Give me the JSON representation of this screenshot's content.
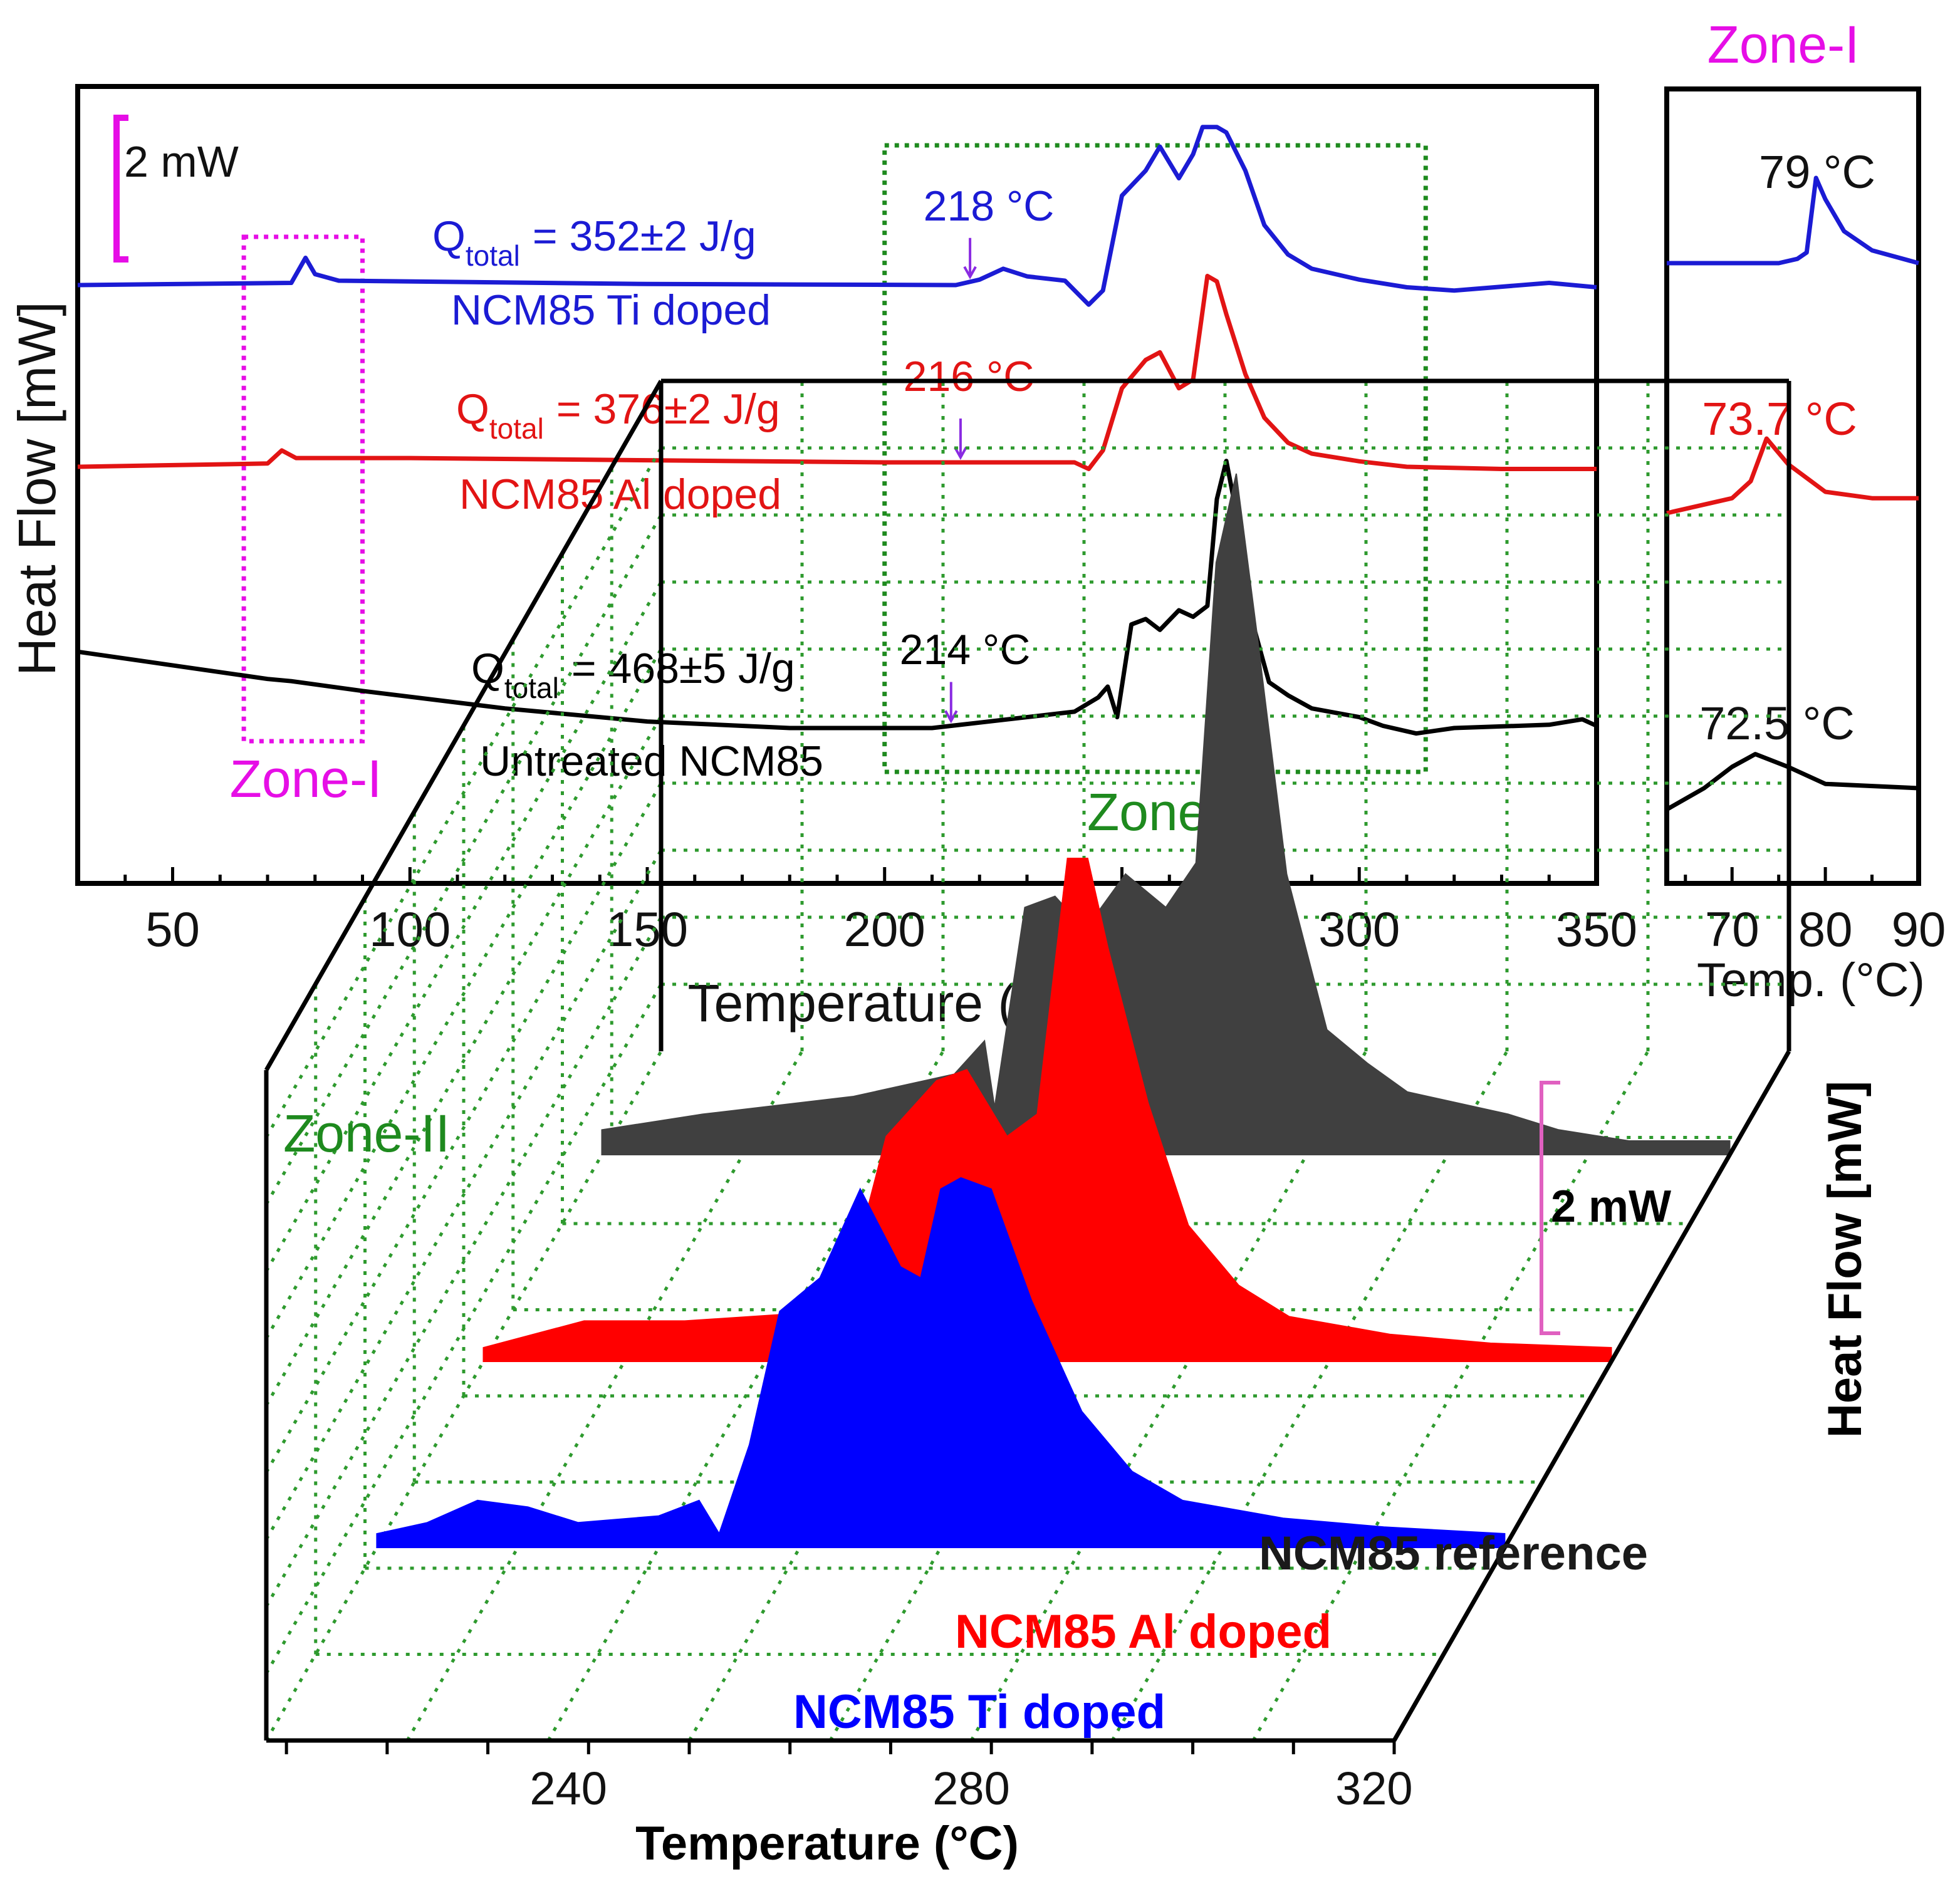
{
  "chart_data": [
    {
      "id": "main",
      "type": "line",
      "xlabel": "Temperature (°C)",
      "ylabel": "Heat Flow [mW]",
      "xlim": [
        30,
        350
      ],
      "xticks": [
        50,
        100,
        150,
        200,
        250,
        300,
        350
      ],
      "scale_bar": "2 mW",
      "zone_labels": {
        "zone1": "Zone-I",
        "zone2": "Zone-II"
      },
      "zone1_range": [
        65,
        90
      ],
      "zone2_range": [
        200,
        314
      ],
      "colors": {
        "ti": "#1b1bd4",
        "al": "#e21414",
        "ref": "#000000",
        "zone1": "#e60ee6",
        "zone2": "#1e8a1e",
        "arrow": "#8a2be2"
      },
      "series": [
        {
          "key": "ti",
          "name": "NCM85 Ti doped",
          "q_label": "Q",
          "q_sub": "total",
          "q_value": "=  352±2 J/g",
          "onset_label": "218 °C",
          "onset_x": 218,
          "points": [
            [
              30,
              0.0
            ],
            [
              75,
              0.02
            ],
            [
              78,
              0.25
            ],
            [
              80,
              0.1
            ],
            [
              85,
              0.04
            ],
            [
              150,
              0.01
            ],
            [
              215,
              0.0
            ],
            [
              220,
              0.05
            ],
            [
              225,
              0.15
            ],
            [
              230,
              0.08
            ],
            [
              238,
              0.04
            ],
            [
              243,
              -0.18
            ],
            [
              246,
              -0.05
            ],
            [
              250,
              0.82
            ],
            [
              255,
              1.05
            ],
            [
              258,
              1.27
            ],
            [
              262,
              0.98
            ],
            [
              265,
              1.2
            ],
            [
              267,
              1.45
            ],
            [
              270,
              1.45
            ],
            [
              272,
              1.4
            ],
            [
              276,
              1.05
            ],
            [
              280,
              0.55
            ],
            [
              285,
              0.28
            ],
            [
              290,
              0.15
            ],
            [
              300,
              0.05
            ],
            [
              310,
              -0.02
            ],
            [
              320,
              -0.05
            ],
            [
              340,
              0.02
            ],
            [
              350,
              -0.02
            ]
          ]
        },
        {
          "key": "al",
          "name": "NCM85 Al doped",
          "q_label": "Q",
          "q_sub": "total",
          "q_value": "=  376±2 J/g",
          "onset_label": "216 °C",
          "onset_x": 216,
          "points": [
            [
              30,
              0.0
            ],
            [
              70,
              0.03
            ],
            [
              73,
              0.15
            ],
            [
              76,
              0.08
            ],
            [
              100,
              0.08
            ],
            [
              150,
              0.06
            ],
            [
              200,
              0.04
            ],
            [
              240,
              0.04
            ],
            [
              243,
              -0.02
            ],
            [
              246,
              0.15
            ],
            [
              250,
              0.72
            ],
            [
              255,
              0.98
            ],
            [
              258,
              1.05
            ],
            [
              262,
              0.72
            ],
            [
              265,
              0.8
            ],
            [
              268,
              1.75
            ],
            [
              270,
              1.7
            ],
            [
              272,
              1.4
            ],
            [
              276,
              0.85
            ],
            [
              280,
              0.45
            ],
            [
              285,
              0.22
            ],
            [
              290,
              0.12
            ],
            [
              300,
              0.05
            ],
            [
              310,
              0.0
            ],
            [
              330,
              -0.02
            ],
            [
              350,
              -0.02
            ]
          ]
        },
        {
          "key": "ref",
          "name": "Untreated NCM85",
          "q_label": "Q",
          "q_sub": "total",
          "q_value": "=  468±5 J/g",
          "onset_label": "214 °C",
          "onset_x": 214,
          "points": [
            [
              30,
              0.7
            ],
            [
              70,
              0.45
            ],
            [
              75,
              0.43
            ],
            [
              90,
              0.34
            ],
            [
              120,
              0.18
            ],
            [
              150,
              0.06
            ],
            [
              180,
              0.0
            ],
            [
              210,
              0.0
            ],
            [
              220,
              0.05
            ],
            [
              240,
              0.15
            ],
            [
              245,
              0.28
            ],
            [
              247,
              0.38
            ],
            [
              249,
              0.1
            ],
            [
              252,
              0.95
            ],
            [
              255,
              1.0
            ],
            [
              258,
              0.9
            ],
            [
              262,
              1.08
            ],
            [
              265,
              1.02
            ],
            [
              268,
              1.12
            ],
            [
              270,
              2.1
            ],
            [
              272,
              2.45
            ],
            [
              274,
              2.0
            ],
            [
              277,
              1.05
            ],
            [
              281,
              0.42
            ],
            [
              285,
              0.3
            ],
            [
              290,
              0.18
            ],
            [
              300,
              0.1
            ],
            [
              305,
              0.02
            ],
            [
              312,
              -0.05
            ],
            [
              320,
              0.0
            ],
            [
              340,
              0.03
            ],
            [
              347,
              0.08
            ],
            [
              350,
              0.02
            ]
          ]
        }
      ]
    },
    {
      "id": "zone1_inset",
      "type": "line",
      "title": "Zone-I",
      "xlabel": "Temp. (°C)",
      "xlim": [
        63,
        90
      ],
      "xticks": [
        70,
        80,
        90
      ],
      "series": [
        {
          "key": "ti",
          "peak_label": "79 °C",
          "points": [
            [
              63,
              0.0
            ],
            [
              75,
              0.0
            ],
            [
              77,
              0.02
            ],
            [
              78,
              0.05
            ],
            [
              79,
              0.4
            ],
            [
              80,
              0.3
            ],
            [
              82,
              0.15
            ],
            [
              85,
              0.06
            ],
            [
              90,
              0.0
            ]
          ]
        },
        {
          "key": "al",
          "peak_label": "73.7 °C",
          "points": [
            [
              63,
              -0.05
            ],
            [
              70,
              0.02
            ],
            [
              72,
              0.1
            ],
            [
              73.7,
              0.3
            ],
            [
              76,
              0.18
            ],
            [
              80,
              0.05
            ],
            [
              85,
              0.02
            ],
            [
              90,
              0.02
            ]
          ]
        },
        {
          "key": "ref",
          "peak_label": "72.5 °C",
          "points": [
            [
              63,
              -0.1
            ],
            [
              67,
              0.0
            ],
            [
              70,
              0.1
            ],
            [
              72.5,
              0.16
            ],
            [
              76,
              0.1
            ],
            [
              80,
              0.02
            ],
            [
              90,
              0.0
            ]
          ]
        }
      ]
    },
    {
      "id": "zone2_3d",
      "type": "area",
      "title": "Zone-II",
      "xlabel": "Temperature (°C)",
      "zlabel": "Heat Flow [mW]",
      "xlim": [
        210,
        322
      ],
      "xticks": [
        240,
        280,
        320
      ],
      "scale_bar": "2 mW",
      "series": [
        {
          "key": "ref",
          "name": "NCM85 reference",
          "color": "#404040",
          "points": [
            [
              210,
              0.05
            ],
            [
              220,
              0.12
            ],
            [
              235,
              0.2
            ],
            [
              245,
              0.3
            ],
            [
              248,
              0.45
            ],
            [
              249,
              0.15
            ],
            [
              252,
              1.05
            ],
            [
              255,
              1.1
            ],
            [
              258,
              0.95
            ],
            [
              262,
              1.2
            ],
            [
              266,
              1.05
            ],
            [
              269,
              1.25
            ],
            [
              271,
              2.6
            ],
            [
              273,
              3.0
            ],
            [
              275,
              2.3
            ],
            [
              278,
              1.2
            ],
            [
              282,
              0.5
            ],
            [
              286,
              0.35
            ],
            [
              290,
              0.22
            ],
            [
              300,
              0.12
            ],
            [
              305,
              0.05
            ],
            [
              312,
              0.0
            ],
            [
              322,
              0.0
            ]
          ]
        },
        {
          "key": "al",
          "name": "NCM85 Al doped",
          "color": "#ff0000",
          "points": [
            [
              210,
              0.0
            ],
            [
              220,
              0.12
            ],
            [
              230,
              0.12
            ],
            [
              240,
              0.15
            ],
            [
              243,
              0.05
            ],
            [
              246,
              0.25
            ],
            [
              250,
              0.95
            ],
            [
              255,
              1.2
            ],
            [
              258,
              1.25
            ],
            [
              262,
              0.95
            ],
            [
              265,
              1.05
            ],
            [
              268,
              2.2
            ],
            [
              270,
              2.2
            ],
            [
              272,
              1.8
            ],
            [
              276,
              1.1
            ],
            [
              280,
              0.55
            ],
            [
              285,
              0.28
            ],
            [
              290,
              0.14
            ],
            [
              300,
              0.06
            ],
            [
              310,
              0.02
            ],
            [
              322,
              0.0
            ]
          ]
        },
        {
          "key": "ti",
          "name": "NCM85 Ti doped",
          "color": "#0000ff",
          "points": [
            [
              210,
              0.0
            ],
            [
              215,
              0.05
            ],
            [
              220,
              0.15
            ],
            [
              225,
              0.12
            ],
            [
              230,
              0.05
            ],
            [
              238,
              0.08
            ],
            [
              242,
              0.15
            ],
            [
              244,
              -0.02
            ],
            [
              247,
              0.4
            ],
            [
              250,
              1.0
            ],
            [
              254,
              1.15
            ],
            [
              258,
              1.55
            ],
            [
              262,
              1.2
            ],
            [
              264,
              1.15
            ],
            [
              266,
              1.55
            ],
            [
              268,
              1.6
            ],
            [
              271,
              1.55
            ],
            [
              275,
              1.05
            ],
            [
              280,
              0.55
            ],
            [
              285,
              0.28
            ],
            [
              290,
              0.15
            ],
            [
              300,
              0.07
            ],
            [
              310,
              0.03
            ],
            [
              322,
              0.0
            ]
          ]
        }
      ]
    }
  ]
}
